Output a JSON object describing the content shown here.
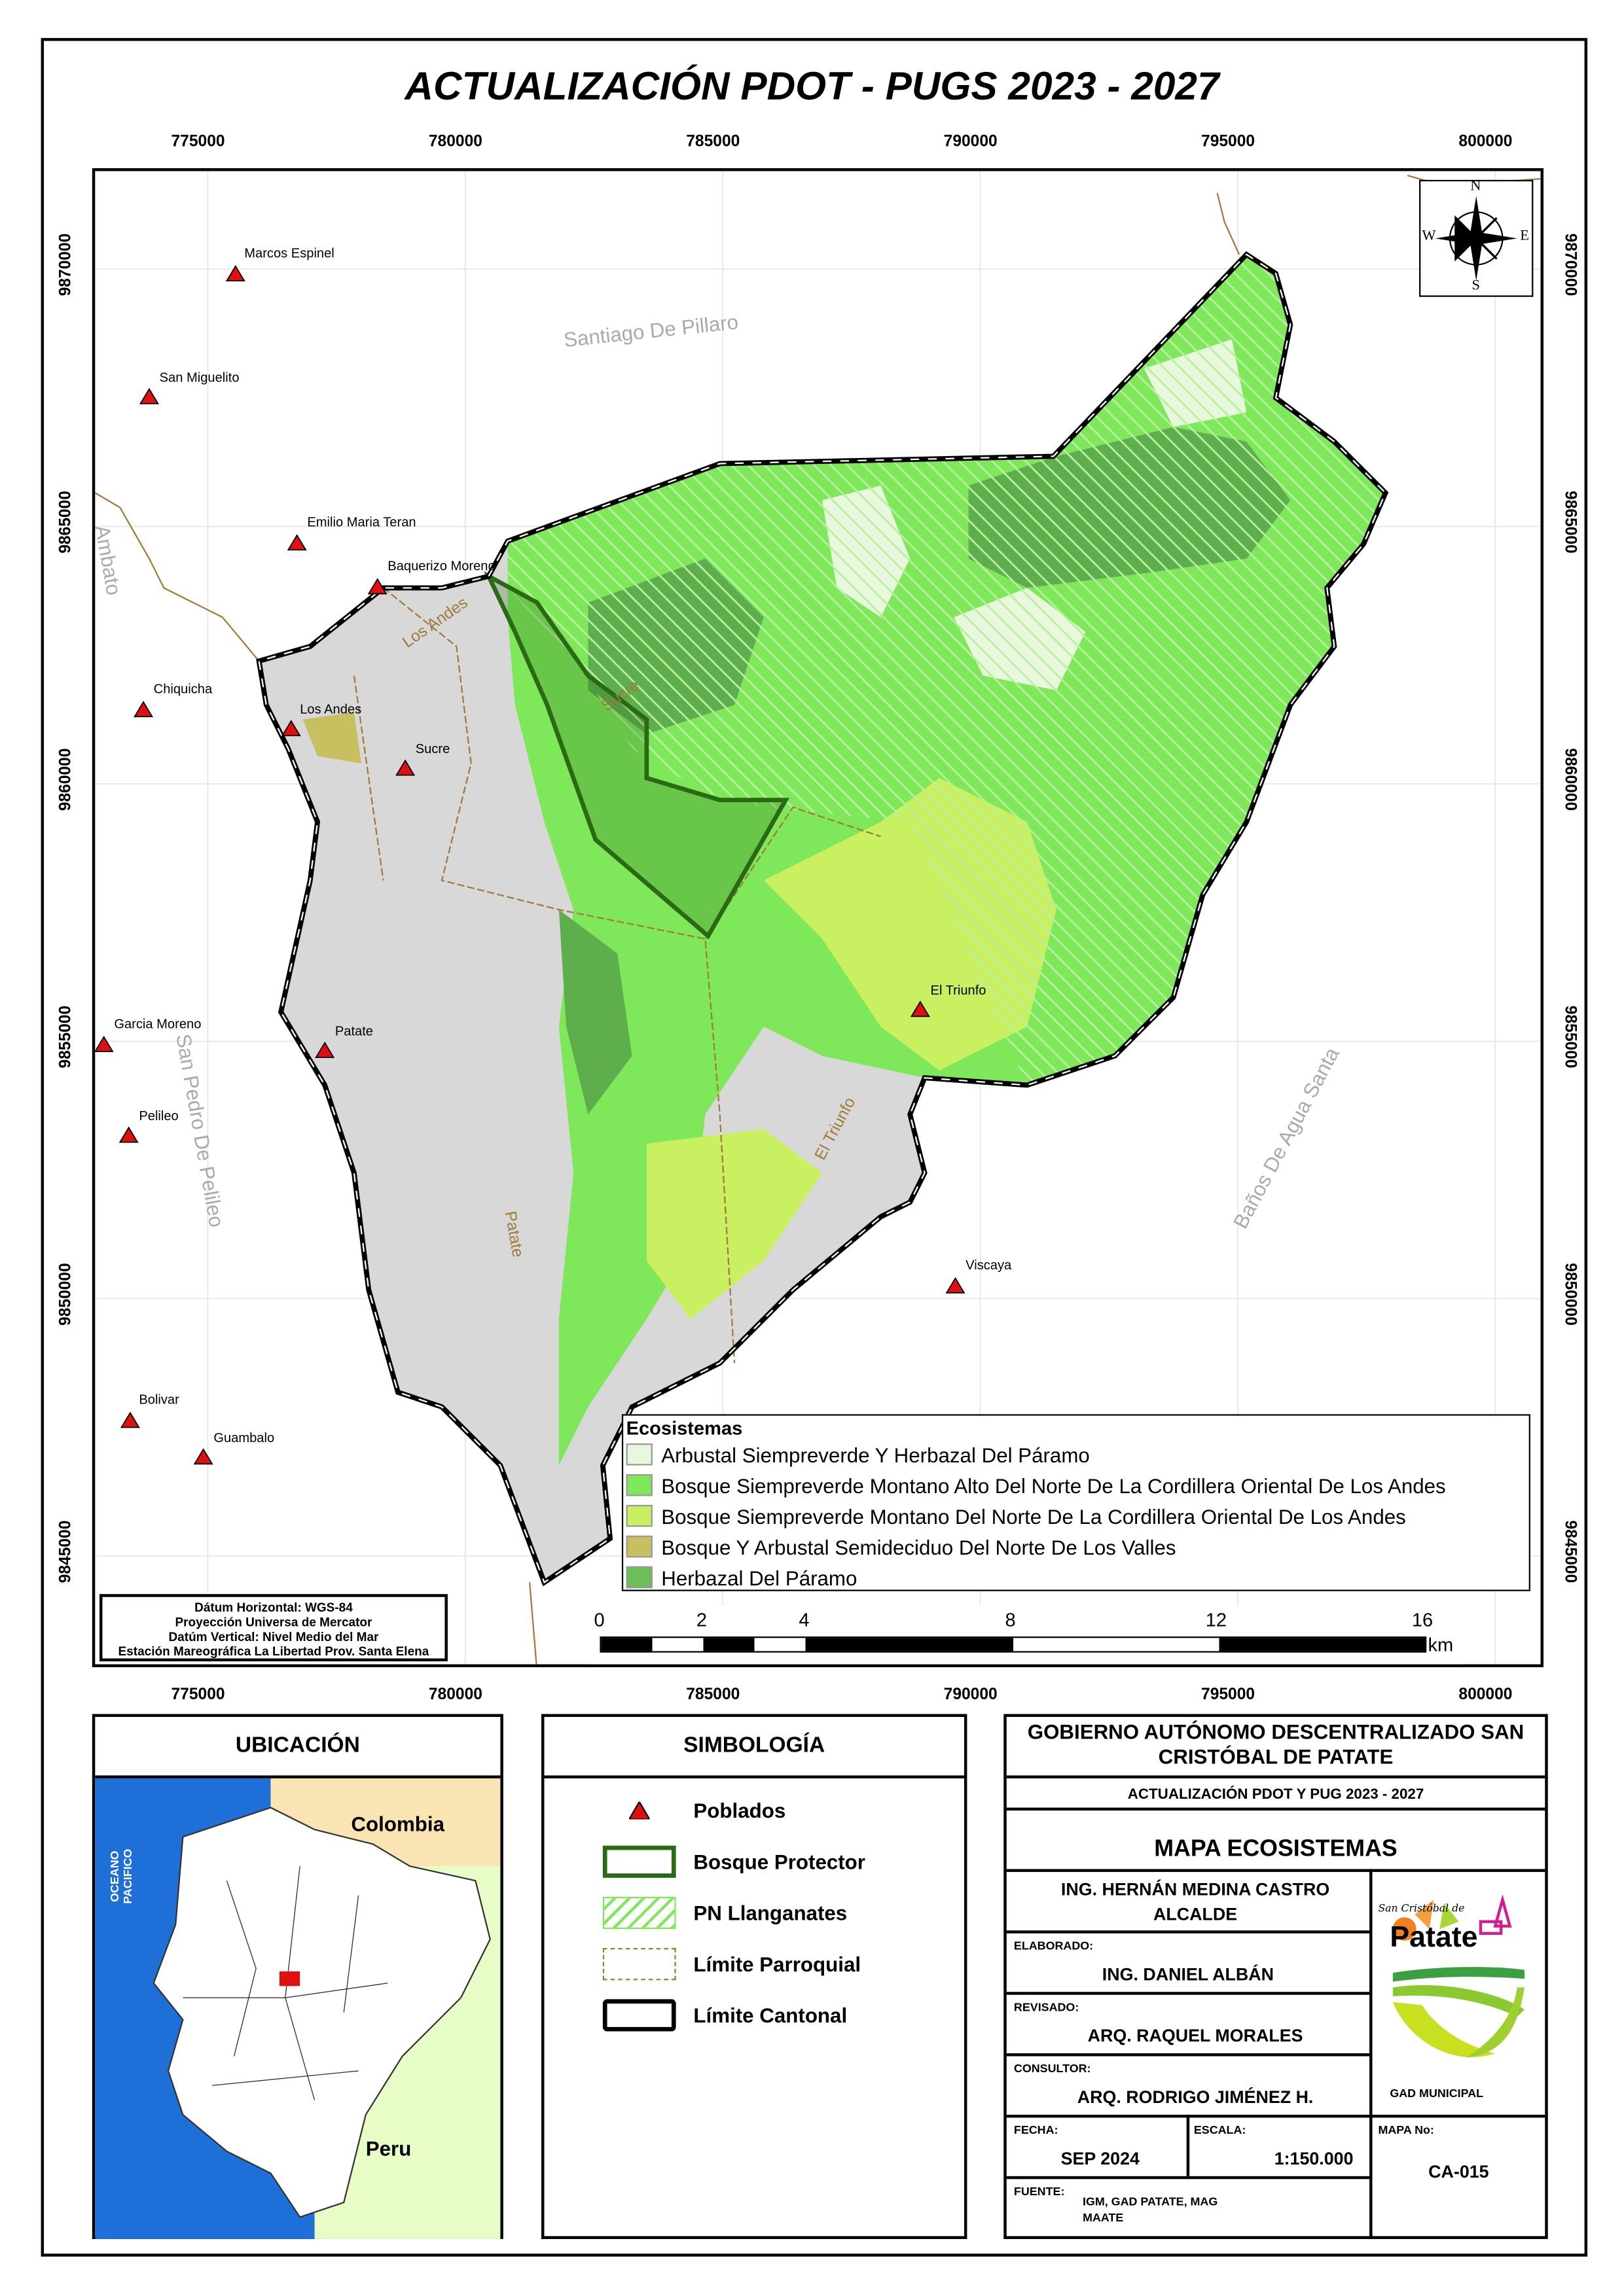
{
  "title": "ACTUALIZACIÓN PDOT - PUGS 2023 - 2027",
  "easting_ticks": [
    "775000",
    "780000",
    "785000",
    "790000",
    "795000",
    "800000"
  ],
  "northing_ticks": [
    "9870000",
    "9865000",
    "9860000",
    "9855000",
    "9850000",
    "9845000"
  ],
  "towns": [
    {
      "name": "Marcos Espinel"
    },
    {
      "name": "San Miguelito"
    },
    {
      "name": "Emilio Maria Teran"
    },
    {
      "name": "Baquerizo Moreno"
    },
    {
      "name": "Chiquicha"
    },
    {
      "name": "Los Andes"
    },
    {
      "name": "Sucre"
    },
    {
      "name": "Garcia Moreno"
    },
    {
      "name": "Patate"
    },
    {
      "name": "Pelileo"
    },
    {
      "name": "El Triunfo"
    },
    {
      "name": "Viscaya"
    },
    {
      "name": "Bolivar"
    },
    {
      "name": "Guambalo"
    }
  ],
  "area_labels": {
    "santiago": "Santiago De Pillaro",
    "ambato": "Ambato",
    "san_pedro": "San Pedro De Pelileo",
    "banos": "Baños De Agua Santa",
    "los_andes": "Los Andes",
    "sucre": "Sucre",
    "patate": "Patate",
    "el_triunfo": "El Triunfo"
  },
  "compass": {
    "n": "N",
    "s": "S",
    "e": "E",
    "w": "W"
  },
  "legend": {
    "title": "Ecosistemas",
    "items": [
      {
        "label": "Arbustal Siempreverde Y Herbazal Del Páramo",
        "color": "#e8f8dc"
      },
      {
        "label": "Bosque Siempreverde Montano Alto Del Norte De La Cordillera Oriental De Los Andes",
        "color": "#7ee85a"
      },
      {
        "label": "Bosque Siempreverde Montano Del Norte De La Cordillera Oriental De Los Andes",
        "color": "#c8f060"
      },
      {
        "label": "Bosque Y Arbustal Semideciduo Del Norte De Los Valles",
        "color": "#c8c060"
      },
      {
        "label": "Herbazal Del Páramo",
        "color": "#6cbf58"
      }
    ]
  },
  "scalebar": {
    "labels": [
      "0",
      "2",
      "4",
      "8",
      "12",
      "16"
    ],
    "unit": "km"
  },
  "datum": [
    "Dátum Horizontal: WGS-84",
    "Proyección Universa de Mercator",
    "Datúm Vertical: Nivel Medio del Mar",
    "Estación Mareográfica La Libertad Prov. Santa Elena"
  ],
  "ubicacion": {
    "title": "UBICACIÓN",
    "colombia": "Colombia",
    "peru": "Peru",
    "ocean": "OCEANO PACIFICO"
  },
  "simbologia": {
    "title": "SIMBOLOGÍA",
    "items": [
      "Poblados",
      "Bosque Protector",
      "PN Llanganates",
      "Límite Parroquial",
      "Límite Cantonal"
    ]
  },
  "titleblock": {
    "gad": "GOBIERNO AUTÓNOMO DESCENTRALIZADO SAN CRISTÓBAL DE PATATE",
    "subtitle": "ACTUALIZACIÓN PDOT Y PUG 2023 - 2027",
    "map_name": "MAPA ECOSISTEMAS",
    "mayor": "ING. HERNÁN MEDINA CASTRO",
    "mayor_role": "ALCALDE",
    "elaborado_label": "ELABORADO:",
    "elaborado": "ING. DANIEL ALBÁN",
    "revisado_label": "REVISADO:",
    "revisado": "ARQ. RAQUEL MORALES",
    "consultor_label": "CONSULTOR:",
    "consultor": "ARQ. RODRIGO JIMÉNEZ H.",
    "fecha_label": "FECHA:",
    "fecha": "SEP 2024",
    "escala_label": "ESCALA:",
    "escala": "1:150.000",
    "mapa_label": "MAPA No:",
    "mapa_no": "CA-015",
    "fuente_label": "FUENTE:",
    "fuente1": "IGM, GAD PATATE, MAG",
    "fuente2": "MAATE",
    "logo_script": "San Cristóbal de",
    "logo_name": "Patate",
    "logo_sub": "GAD MUNICIPAL"
  }
}
